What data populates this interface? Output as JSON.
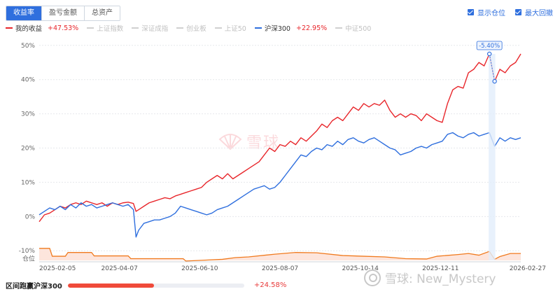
{
  "tabs": [
    {
      "label": "收益率",
      "active": true
    },
    {
      "label": "盈亏金额",
      "active": false
    },
    {
      "label": "总资产",
      "active": false
    }
  ],
  "options": [
    {
      "label": "显示仓位",
      "checked": true
    },
    {
      "label": "最大回撤",
      "checked": true
    }
  ],
  "legend": [
    {
      "name": "我的收益",
      "value": "+47.53%",
      "color": "#e8262b",
      "active": true
    },
    {
      "name": "上证指数",
      "value": "",
      "color": "#d0d0d0",
      "active": false
    },
    {
      "name": "深证成指",
      "value": "",
      "color": "#d0d0d0",
      "active": false
    },
    {
      "name": "创业板",
      "value": "",
      "color": "#d0d0d0",
      "active": false
    },
    {
      "name": "上证50",
      "value": "",
      "color": "#d0d0d0",
      "active": false
    },
    {
      "name": "沪深300",
      "value": "+22.95%",
      "color": "#2f6fde",
      "active": true
    },
    {
      "name": "中证500",
      "value": "",
      "color": "#d0d0d0",
      "active": false
    }
  ],
  "bottom": {
    "label": "区间跑赢沪深300",
    "value": "+24.58%",
    "fraction": 0.49
  },
  "background_mark": "雪球",
  "watermark": "雪球: New_Mystery",
  "chart_data": {
    "type": "line",
    "ylim": [
      -12,
      52
    ],
    "yticks": [
      -10,
      0,
      10,
      20,
      30,
      40,
      50
    ],
    "ytick_labels": [
      "-10%",
      "0%",
      "10%",
      "20%",
      "30%",
      "40%",
      "50%"
    ],
    "position_label": "仓位",
    "xticks": [
      "2025-02-05",
      "2025-04-07",
      "2025-06-10",
      "2025-08-07",
      "2025-10-14",
      "2025-12-11",
      "2026-02-27"
    ],
    "grid": true,
    "drawdown": {
      "label": "-5.40%",
      "peak_value": 47.5,
      "trough_value": 39.5
    },
    "series": [
      {
        "name": "我的收益",
        "color": "#e8262b",
        "points": [
          [
            0,
            -1.5
          ],
          [
            2,
            0.5
          ],
          [
            4,
            1
          ],
          [
            6,
            2
          ],
          [
            8,
            3
          ],
          [
            10,
            2.5
          ],
          [
            12,
            3.5
          ],
          [
            14,
            4
          ],
          [
            16,
            3.5
          ],
          [
            18,
            4.5
          ],
          [
            20,
            4
          ],
          [
            22,
            3.5
          ],
          [
            24,
            4
          ],
          [
            26,
            3
          ],
          [
            28,
            4
          ],
          [
            30,
            3.5
          ],
          [
            32,
            4
          ],
          [
            34,
            4.2
          ],
          [
            36,
            3.8
          ],
          [
            37,
            1.5
          ],
          [
            38,
            2
          ],
          [
            40,
            3
          ],
          [
            42,
            4
          ],
          [
            44,
            4.5
          ],
          [
            46,
            5
          ],
          [
            48,
            5.5
          ],
          [
            50,
            5.2
          ],
          [
            52,
            6
          ],
          [
            54,
            6.5
          ],
          [
            56,
            7
          ],
          [
            58,
            7.5
          ],
          [
            60,
            8
          ],
          [
            62,
            8.5
          ],
          [
            64,
            10
          ],
          [
            66,
            11
          ],
          [
            68,
            12
          ],
          [
            70,
            11
          ],
          [
            72,
            12.5
          ],
          [
            74,
            11
          ],
          [
            76,
            12
          ],
          [
            78,
            13
          ],
          [
            80,
            14
          ],
          [
            82,
            15
          ],
          [
            84,
            16
          ],
          [
            86,
            18
          ],
          [
            88,
            20
          ],
          [
            90,
            19
          ],
          [
            92,
            21
          ],
          [
            94,
            20.5
          ],
          [
            96,
            22
          ],
          [
            98,
            21
          ],
          [
            100,
            23
          ],
          [
            102,
            22
          ],
          [
            104,
            23.5
          ],
          [
            106,
            25
          ],
          [
            108,
            27
          ],
          [
            110,
            26
          ],
          [
            112,
            28
          ],
          [
            114,
            29
          ],
          [
            116,
            28
          ],
          [
            118,
            30
          ],
          [
            120,
            32
          ],
          [
            122,
            31
          ],
          [
            124,
            33
          ],
          [
            126,
            32
          ],
          [
            128,
            33
          ],
          [
            130,
            32.5
          ],
          [
            132,
            34
          ],
          [
            134,
            31
          ],
          [
            136,
            29
          ],
          [
            138,
            30
          ],
          [
            140,
            29
          ],
          [
            142,
            30
          ],
          [
            144,
            29.5
          ],
          [
            146,
            28
          ],
          [
            148,
            30
          ],
          [
            150,
            29
          ],
          [
            152,
            28
          ],
          [
            154,
            27.5
          ],
          [
            156,
            33
          ],
          [
            158,
            37
          ],
          [
            160,
            38
          ],
          [
            162,
            37.5
          ],
          [
            164,
            42
          ],
          [
            166,
            43
          ],
          [
            168,
            45
          ],
          [
            170,
            44
          ],
          [
            172,
            47.5
          ],
          [
            174,
            39.5
          ],
          [
            176,
            43
          ],
          [
            178,
            42
          ],
          [
            180,
            44
          ],
          [
            182,
            45
          ],
          [
            184,
            47.5
          ]
        ]
      },
      {
        "name": "沪深300",
        "color": "#2f6fde",
        "points": [
          [
            0,
            0.5
          ],
          [
            2,
            1.5
          ],
          [
            4,
            2.5
          ],
          [
            6,
            2
          ],
          [
            8,
            3
          ],
          [
            10,
            2
          ],
          [
            12,
            3.5
          ],
          [
            14,
            2.5
          ],
          [
            16,
            4
          ],
          [
            18,
            3
          ],
          [
            20,
            3.5
          ],
          [
            22,
            2.5
          ],
          [
            24,
            3
          ],
          [
            26,
            3.5
          ],
          [
            28,
            4
          ],
          [
            30,
            3.5
          ],
          [
            32,
            3
          ],
          [
            34,
            3.5
          ],
          [
            36,
            2
          ],
          [
            37,
            -6
          ],
          [
            38,
            -4
          ],
          [
            40,
            -2
          ],
          [
            42,
            -1.5
          ],
          [
            44,
            -1
          ],
          [
            46,
            -1
          ],
          [
            48,
            -0.5
          ],
          [
            50,
            0
          ],
          [
            52,
            1
          ],
          [
            54,
            3
          ],
          [
            56,
            2.5
          ],
          [
            58,
            2
          ],
          [
            60,
            1.5
          ],
          [
            62,
            1
          ],
          [
            64,
            0.5
          ],
          [
            66,
            1
          ],
          [
            68,
            2
          ],
          [
            70,
            2.5
          ],
          [
            72,
            3
          ],
          [
            74,
            4
          ],
          [
            76,
            5
          ],
          [
            78,
            6
          ],
          [
            80,
            7
          ],
          [
            82,
            8
          ],
          [
            84,
            8.5
          ],
          [
            86,
            9
          ],
          [
            88,
            8
          ],
          [
            90,
            8.5
          ],
          [
            92,
            10
          ],
          [
            94,
            12
          ],
          [
            96,
            14
          ],
          [
            98,
            16
          ],
          [
            100,
            18
          ],
          [
            102,
            17.5
          ],
          [
            104,
            19
          ],
          [
            106,
            20
          ],
          [
            108,
            19.5
          ],
          [
            110,
            21
          ],
          [
            112,
            20.5
          ],
          [
            114,
            22
          ],
          [
            116,
            21
          ],
          [
            118,
            22.5
          ],
          [
            120,
            23
          ],
          [
            122,
            22
          ],
          [
            124,
            21.5
          ],
          [
            126,
            22.5
          ],
          [
            128,
            23
          ],
          [
            130,
            22
          ],
          [
            132,
            21
          ],
          [
            134,
            20
          ],
          [
            136,
            19.5
          ],
          [
            138,
            18
          ],
          [
            140,
            18.5
          ],
          [
            142,
            19
          ],
          [
            144,
            20
          ],
          [
            146,
            20.5
          ],
          [
            148,
            20
          ],
          [
            150,
            21
          ],
          [
            152,
            21.5
          ],
          [
            154,
            22
          ],
          [
            156,
            24
          ],
          [
            158,
            24.5
          ],
          [
            160,
            23.5
          ],
          [
            162,
            23
          ],
          [
            164,
            24
          ],
          [
            166,
            24.5
          ],
          [
            168,
            23.5
          ],
          [
            170,
            24
          ],
          [
            172,
            24.5
          ],
          [
            174,
            20.5
          ],
          [
            176,
            23
          ],
          [
            178,
            22
          ],
          [
            180,
            23
          ],
          [
            182,
            22.5
          ],
          [
            184,
            23
          ]
        ]
      }
    ],
    "position_series": {
      "name": "仓位",
      "color": "#f07a1e",
      "fill": "#fde5dc",
      "points": [
        [
          0,
          -9.3
        ],
        [
          4,
          -9.3
        ],
        [
          5,
          -11.6
        ],
        [
          10,
          -11.6
        ],
        [
          11,
          -10.5
        ],
        [
          20,
          -10.5
        ],
        [
          21,
          -11.5
        ],
        [
          34,
          -11.5
        ],
        [
          35,
          -12.3
        ],
        [
          55,
          -12.3
        ],
        [
          56,
          -13
        ],
        [
          62,
          -12.8
        ],
        [
          70,
          -12.5
        ],
        [
          75,
          -12
        ],
        [
          80,
          -11.8
        ],
        [
          90,
          -11
        ],
        [
          98,
          -10.5
        ],
        [
          106,
          -10.6
        ],
        [
          116,
          -11.4
        ],
        [
          124,
          -11.6
        ],
        [
          132,
          -11.8
        ],
        [
          140,
          -12.3
        ],
        [
          148,
          -12.4
        ],
        [
          152,
          -11.6
        ],
        [
          160,
          -11.1
        ],
        [
          164,
          -10.8
        ],
        [
          168,
          -11.3
        ],
        [
          172,
          -10.2
        ],
        [
          174,
          -12.5
        ],
        [
          176,
          -11.7
        ],
        [
          180,
          -10.8
        ],
        [
          184,
          -10.8
        ]
      ]
    },
    "x_max": 184
  }
}
